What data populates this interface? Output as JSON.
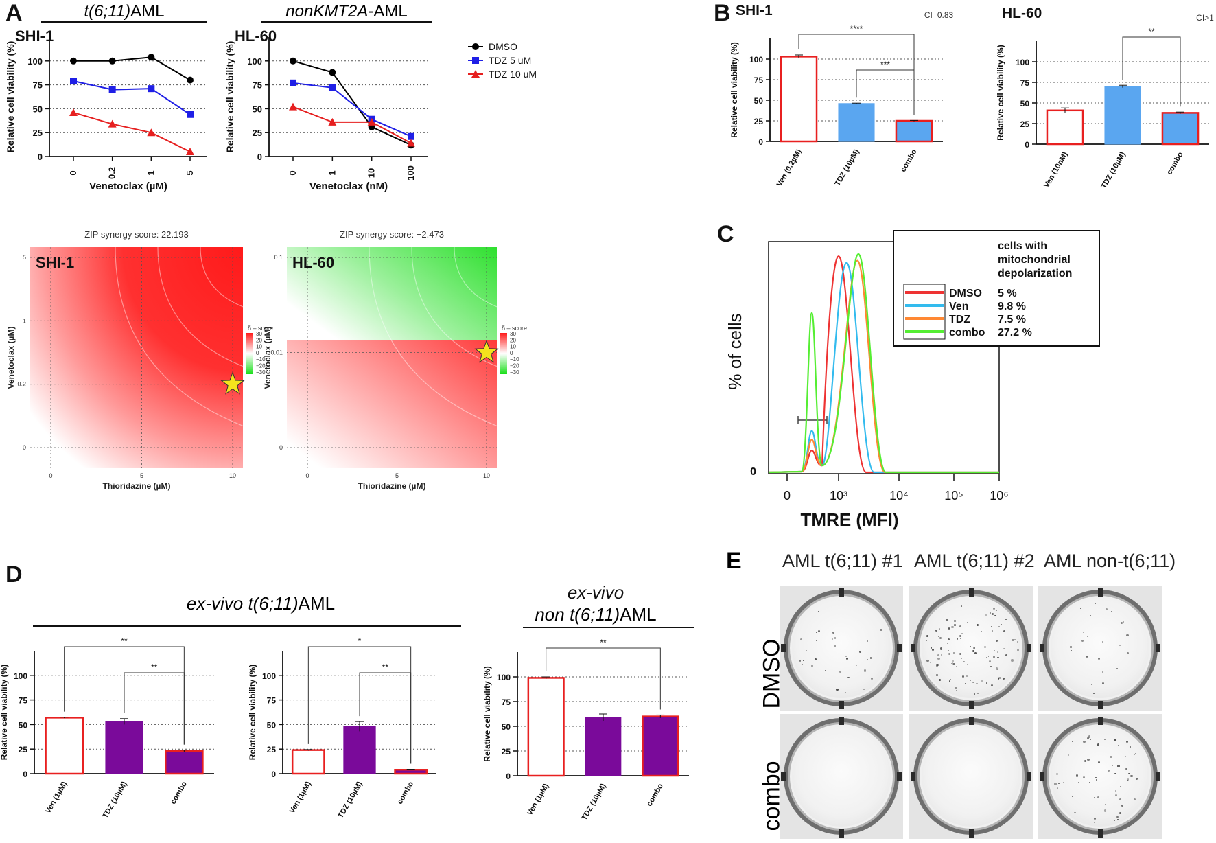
{
  "panel_labels": {
    "a": "A",
    "b": "B",
    "c": "C",
    "d": "D",
    "e": "E"
  },
  "colors": {
    "dmso": "#000000",
    "tdz5": "#1f1fe6",
    "tdz10": "#e61f1f",
    "ven_bar_border": "#e82020",
    "tdz_blue": "#5aa6f0",
    "purple": "#7a0a9a",
    "star": "#f5e31d",
    "green": "#22dd22",
    "red": "#ff1a1a"
  },
  "chart_data": [
    {
      "id": "A-shi1-line",
      "type": "line",
      "header": "t(6;11)AML",
      "cell_line": "SHI-1",
      "categories": [
        "0",
        "0.2",
        "1",
        "5"
      ],
      "xlabel": "Venetoclax (µM)",
      "ylabel": "Relative cell viability (%)",
      "yticks": [
        "0",
        "25",
        "50",
        "75",
        "100"
      ],
      "ylim": [
        0,
        125
      ],
      "series": [
        {
          "name": "DMSO",
          "color": "#000000",
          "marker": "circle",
          "values": [
            100,
            100,
            104,
            80
          ]
        },
        {
          "name": "TDZ 5 uM",
          "color": "#1f1fe6",
          "marker": "square",
          "values": [
            79,
            70,
            71,
            44
          ]
        },
        {
          "name": "TDZ 10 uM",
          "color": "#e61f1f",
          "marker": "triangle",
          "values": [
            46,
            34,
            25,
            5
          ]
        }
      ]
    },
    {
      "id": "A-hl60-line",
      "type": "line",
      "header": "nonKMT2A-AML",
      "cell_line": "HL-60",
      "categories": [
        "0",
        "1",
        "10",
        "100"
      ],
      "xlabel": "Venetoclax (nM)",
      "ylabel": "Relative cell viability (%)",
      "yticks": [
        "0",
        "25",
        "50",
        "75",
        "100"
      ],
      "ylim": [
        0,
        125
      ],
      "series": [
        {
          "name": "DMSO",
          "color": "#000000",
          "marker": "circle",
          "values": [
            100,
            88,
            31,
            12
          ]
        },
        {
          "name": "TDZ 5 uM",
          "color": "#1f1fe6",
          "marker": "square",
          "values": [
            77,
            72,
            39,
            21
          ]
        },
        {
          "name": "TDZ 10 uM",
          "color": "#e61f1f",
          "marker": "triangle",
          "values": [
            52,
            36,
            36,
            14
          ]
        }
      ],
      "legend": [
        "DMSO",
        "TDZ 5 uM",
        "TDZ 10 uM"
      ]
    },
    {
      "id": "A-shi1-heatmap",
      "type": "heatmap",
      "title": "ZIP synergy score: 22.193",
      "cell_line": "SHI-1",
      "xlabel": "Thioridazine (µM)",
      "ylabel": "Venetoclax (µM)",
      "xticks": [
        "0",
        "5",
        "10"
      ],
      "yticks": [
        "0",
        "0.2",
        "1",
        "5"
      ],
      "legend_title": "δ – score",
      "legend_ticks": [
        "30",
        "20",
        "10",
        "0",
        "−10",
        "−20",
        "−30"
      ],
      "star": {
        "x": "10",
        "y": "0.2"
      }
    },
    {
      "id": "A-hl60-heatmap",
      "type": "heatmap",
      "title": "ZIP synergy score: −2.473",
      "cell_line": "HL-60",
      "xlabel": "Thioridazine (µM)",
      "ylabel": "Venetoclax (µM)",
      "xticks": [
        "0",
        "5",
        "10"
      ],
      "yticks": [
        "0",
        "0.01",
        "0.1"
      ],
      "legend_title": "δ – score",
      "legend_ticks": [
        "30",
        "20",
        "10",
        "0",
        "−10",
        "−20",
        "−30"
      ],
      "star": {
        "x": "10",
        "y": "0.01"
      }
    },
    {
      "id": "B-shi1",
      "type": "bar",
      "cell_line": "SHI-1",
      "categories": [
        "Ven (0.2µM)",
        "TDZ (10µM)",
        "combo"
      ],
      "values": [
        103,
        46,
        25
      ],
      "errors": [
        2,
        0.5,
        0.5
      ],
      "ylabel": "Relative cell viability (%)",
      "yticks": [
        "0",
        "25",
        "50",
        "75",
        "100"
      ],
      "ylim": [
        0,
        125
      ],
      "ci": "CI=0.83",
      "significance": [
        {
          "from": 0,
          "to": 2,
          "label": "****"
        },
        {
          "from": 1,
          "to": 2,
          "label": "***"
        }
      ]
    },
    {
      "id": "B-hl60",
      "type": "bar",
      "cell_line": "HL-60",
      "categories": [
        "Ven (10nM)",
        "TDZ (10µM)",
        "combo"
      ],
      "values": [
        41,
        70,
        38
      ],
      "errors": [
        3,
        1.5,
        1
      ],
      "ylabel": "Relative cell viability (%)",
      "yticks": [
        "0",
        "25",
        "50",
        "75",
        "100"
      ],
      "ylim": [
        0,
        125
      ],
      "ci": "CI>1",
      "significance": [
        {
          "from": 1,
          "to": 2,
          "label": "**"
        }
      ]
    },
    {
      "id": "C-flow",
      "type": "line",
      "xlabel": "TMRE (MFI)",
      "ylabel": "% of cells",
      "xticks": [
        "0",
        "10³",
        "10⁴",
        "10⁵",
        "10⁶"
      ],
      "y0": "0",
      "legend_title": [
        "cells with",
        "mitochondrial",
        "depolarization"
      ],
      "series": [
        {
          "name": "DMSO",
          "value": "5 %",
          "color": "#ee3333",
          "low_peak": 0.1,
          "main_peak_mfi": 1.0,
          "main_peak_height": 0.99
        },
        {
          "name": "Ven",
          "value": "9.8 %",
          "color": "#33bbee",
          "low_peak": 0.19,
          "main_peak_mfi": 1.4,
          "main_peak_height": 0.96
        },
        {
          "name": "TDZ",
          "value": "7.5 %",
          "color": "#ff8833",
          "low_peak": 0.15,
          "main_peak_mfi": 2.2,
          "main_peak_height": 0.97
        },
        {
          "name": "combo",
          "value": "27.2 %",
          "color": "#55ee33",
          "low_peak": 0.73,
          "main_peak_mfi": 2.3,
          "main_peak_height": 1.0
        }
      ]
    },
    {
      "id": "D-left",
      "type": "bar",
      "group_header": "ex-vivo t(6;11)AML",
      "categories": [
        "Ven (1µM)",
        "TDZ (10µM)",
        "combo"
      ],
      "values": [
        57,
        53,
        23
      ],
      "errors": [
        0.5,
        3,
        1
      ],
      "ylabel": "Relative cell viability (%)",
      "yticks": [
        "0",
        "25",
        "50",
        "75",
        "100"
      ],
      "ylim": [
        0,
        125
      ],
      "significance": [
        {
          "from": 0,
          "to": 2,
          "label": "**"
        },
        {
          "from": 1,
          "to": 2,
          "label": "**"
        }
      ]
    },
    {
      "id": "D-mid",
      "type": "bar",
      "categories": [
        "Ven (1µM)",
        "TDZ (10µM)",
        "combo"
      ],
      "values": [
        24,
        48,
        4
      ],
      "errors": [
        0.5,
        5,
        0.5
      ],
      "ylabel": "Relative cell viability (%)",
      "yticks": [
        "0",
        "25",
        "50",
        "75",
        "100"
      ],
      "ylim": [
        0,
        125
      ],
      "significance": [
        {
          "from": 0,
          "to": 2,
          "label": "*"
        },
        {
          "from": 1,
          "to": 2,
          "label": "**"
        }
      ]
    },
    {
      "id": "D-right",
      "type": "bar",
      "group_header": [
        "ex-vivo",
        "non t(6;11)AML"
      ],
      "categories": [
        "Ven (1µM)",
        "TDZ (10µM)",
        "combo"
      ],
      "values": [
        99,
        59,
        60
      ],
      "errors": [
        1,
        3.5,
        1.5
      ],
      "ylabel": "Relative cell viability (%)",
      "yticks": [
        "0",
        "25",
        "50",
        "75",
        "100"
      ],
      "ylim": [
        0,
        125
      ],
      "significance": [
        {
          "from": 0,
          "to": 2,
          "label": "**"
        }
      ]
    }
  ],
  "panel_e": {
    "columns": [
      "AML t(6;11) #1",
      "AML t(6;11) #2",
      "AML non-t(6;11)"
    ],
    "rows": [
      "DMSO",
      "combo"
    ]
  }
}
